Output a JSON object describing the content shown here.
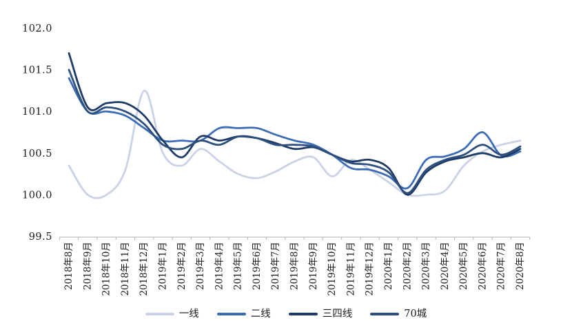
{
  "chart_data": {
    "type": "line",
    "title": "",
    "xlabel": "",
    "ylabel": "",
    "grid": false,
    "legend_position": "bottom",
    "ylim": [
      99.5,
      102.0
    ],
    "y_ticks": [
      "99.5",
      "100.0",
      "100.5",
      "101.0",
      "101.5",
      "102.0"
    ],
    "y_tick_values": [
      99.5,
      100.0,
      100.5,
      101.0,
      101.5,
      102.0
    ],
    "x_labels": [
      "2018年8月",
      "2018年9月",
      "2018年10月",
      "2018年11月",
      "2018年12月",
      "2019年1月",
      "2019年2月",
      "2019年3月",
      "2019年4月",
      "2019年5月",
      "2019年6月",
      "2019年7月",
      "2019年8月",
      "2019年9月",
      "2019年10月",
      "2019年11月",
      "2019年12月",
      "2020年1月",
      "2020年2月",
      "2020年3月",
      "2020年4月",
      "2020年5月",
      "2020年6月",
      "2020年7月",
      "2020年8月"
    ],
    "series": [
      {
        "name": "一线",
        "key": "first-tier",
        "color": "#cbd2e6",
        "values": [
          100.35,
          100.0,
          100.0,
          100.3,
          101.25,
          100.5,
          100.35,
          100.55,
          100.4,
          100.25,
          100.2,
          100.28,
          100.4,
          100.45,
          100.22,
          100.42,
          100.3,
          100.15,
          100.0,
          100.0,
          100.05,
          100.35,
          100.52,
          100.6,
          100.65
        ]
      },
      {
        "name": "二线",
        "key": "second-tier",
        "color": "#3c6cb5",
        "values": [
          101.4,
          101.0,
          101.0,
          100.95,
          100.8,
          100.65,
          100.65,
          100.65,
          100.8,
          100.8,
          100.8,
          100.72,
          100.65,
          100.6,
          100.48,
          100.32,
          100.3,
          100.22,
          100.08,
          100.42,
          100.46,
          100.55,
          100.75,
          100.47,
          100.52
        ]
      },
      {
        "name": "三四线",
        "key": "third-fourth-tier",
        "color": "#1e3a66",
        "values": [
          101.7,
          101.05,
          101.1,
          101.1,
          100.95,
          100.65,
          100.45,
          100.7,
          100.65,
          100.7,
          100.68,
          100.62,
          100.55,
          100.57,
          100.48,
          100.4,
          100.42,
          100.32,
          100.0,
          100.27,
          100.4,
          100.45,
          100.5,
          100.45,
          100.55
        ]
      },
      {
        "name": "70城",
        "key": "70-cities",
        "color": "#2c4f7d",
        "values": [
          101.5,
          101.0,
          101.05,
          101.0,
          100.85,
          100.6,
          100.55,
          100.65,
          100.6,
          100.7,
          100.68,
          100.6,
          100.6,
          100.58,
          100.48,
          100.38,
          100.36,
          100.27,
          100.02,
          100.3,
          100.42,
          100.48,
          100.6,
          100.48,
          100.58
        ]
      }
    ],
    "axis_color": "#b3b3b3",
    "text_color": "#1c1c1c"
  }
}
